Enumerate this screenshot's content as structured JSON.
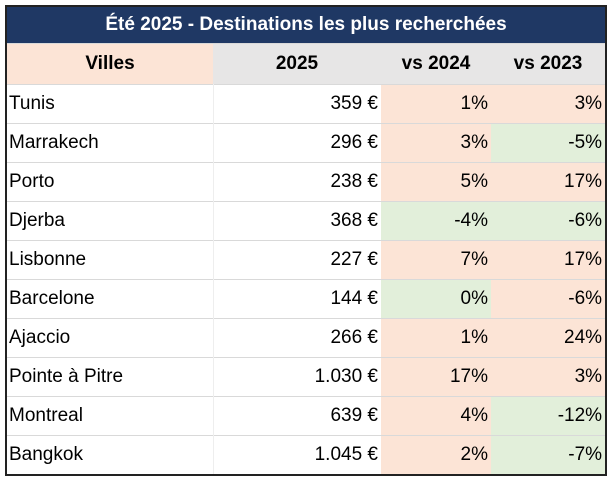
{
  "table": {
    "title": "Été 2025 - Destinations les plus recherchées",
    "columns": [
      "Villes",
      "2025",
      "vs 2024",
      "vs 2023"
    ],
    "rows": [
      [
        "Tunis",
        "359 €",
        "1%",
        "3%"
      ],
      [
        "Marrakech",
        "296 €",
        "3%",
        "-5%"
      ],
      [
        "Porto",
        "238 €",
        "5%",
        "17%"
      ],
      [
        "Djerba",
        "368 €",
        "-4%",
        "-6%"
      ],
      [
        "Lisbonne",
        "227 €",
        "7%",
        "17%"
      ],
      [
        "Barcelone",
        "144 €",
        "0%",
        "-6%"
      ],
      [
        "Ajaccio",
        "266 €",
        "1%",
        "24%"
      ],
      [
        "Pointe à Pitre",
        "1.030 €",
        "17%",
        "3%"
      ],
      [
        "Montreal",
        "639 €",
        "4%",
        "-12%"
      ],
      [
        "Bangkok",
        "1.045 €",
        "2%",
        "-7%"
      ]
    ]
  }
}
